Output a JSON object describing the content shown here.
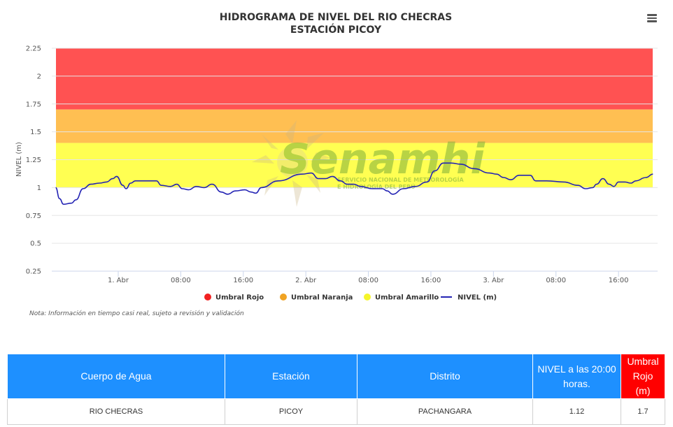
{
  "chart_data": {
    "type": "line",
    "title": "HIDROGRAMA DE NIVEL DEL RIO CHECRAS",
    "subtitle": "ESTACIÓN PICOY",
    "ylabel": "NIVEL (m)",
    "ylim": [
      0.25,
      2.25
    ],
    "yticks": [
      "0.25",
      "0.5",
      "0.75",
      "1",
      "1.25",
      "1.5",
      "1.75",
      "2",
      "2.25"
    ],
    "xticks": [
      {
        "t": 9,
        "label": "1. Abr"
      },
      {
        "t": 17,
        "label": "08:00"
      },
      {
        "t": 25,
        "label": "16:00"
      },
      {
        "t": 33,
        "label": "2. Abr"
      },
      {
        "t": 41,
        "label": "08:00"
      },
      {
        "t": 49,
        "label": "16:00"
      },
      {
        "t": 57,
        "label": "3. Abr"
      },
      {
        "t": 65,
        "label": "08:00"
      },
      {
        "t": 73,
        "label": "16:00"
      }
    ],
    "xlim": [
      0.5,
      78
    ],
    "bands": [
      {
        "name": "Umbral Rojo",
        "from": 1.7,
        "to": 2.25,
        "color": "#ff5252"
      },
      {
        "name": "Umbral Naranja",
        "from": 1.4,
        "to": 1.7,
        "color": "#ffbf52"
      },
      {
        "name": "Umbral Amarillo",
        "from": 1.0,
        "to": 1.4,
        "color": "#ffff52"
      }
    ],
    "series": [
      {
        "name": "NIVEL (m)",
        "color": "#2424b4",
        "points": [
          [
            1.0,
            1.0
          ],
          [
            1.5,
            0.9
          ],
          [
            2.0,
            0.85
          ],
          [
            3.0,
            0.86
          ],
          [
            3.6,
            0.89
          ],
          [
            4.5,
            0.99
          ],
          [
            5.5,
            1.03
          ],
          [
            6.6,
            1.04
          ],
          [
            7.5,
            1.05
          ],
          [
            8.3,
            1.08
          ],
          [
            8.8,
            1.1
          ],
          [
            9.6,
            1.02
          ],
          [
            10.0,
            0.99
          ],
          [
            10.6,
            1.04
          ],
          [
            11.2,
            1.06
          ],
          [
            12.8,
            1.06
          ],
          [
            13.9,
            1.06
          ],
          [
            14.5,
            1.02
          ],
          [
            15.7,
            1.01
          ],
          [
            16.5,
            1.03
          ],
          [
            17.2,
            0.99
          ],
          [
            18.0,
            0.98
          ],
          [
            19.0,
            1.01
          ],
          [
            20.0,
            1.0
          ],
          [
            21.0,
            1.03
          ],
          [
            22.2,
            0.96
          ],
          [
            23.0,
            0.94
          ],
          [
            24.0,
            0.97
          ],
          [
            25.2,
            0.98
          ],
          [
            26.0,
            0.96
          ],
          [
            26.6,
            0.95
          ],
          [
            27.3,
            1.0
          ],
          [
            29.5,
            1.06
          ],
          [
            32.5,
            1.12
          ],
          [
            33.7,
            1.13
          ],
          [
            34.6,
            1.08
          ],
          [
            35.5,
            1.08
          ],
          [
            36.4,
            1.1
          ],
          [
            37.4,
            1.06
          ],
          [
            38.3,
            1.03
          ],
          [
            39.1,
            1.03
          ],
          [
            40.0,
            1.01
          ],
          [
            41.5,
            0.99
          ],
          [
            42.8,
            0.99
          ],
          [
            43.4,
            0.97
          ],
          [
            44.1,
            0.94
          ],
          [
            45.5,
            0.99
          ],
          [
            47.0,
            1.01
          ],
          [
            48.5,
            1.05
          ],
          [
            49.5,
            1.15
          ],
          [
            50.6,
            1.22
          ],
          [
            51.6,
            1.22
          ],
          [
            52.8,
            1.21
          ],
          [
            54.5,
            1.17
          ],
          [
            56.5,
            1.13
          ],
          [
            57.4,
            1.12
          ],
          [
            58.3,
            1.09
          ],
          [
            59.2,
            1.07
          ],
          [
            60.3,
            1.11
          ],
          [
            61.7,
            1.11
          ],
          [
            62.4,
            1.06
          ],
          [
            63.8,
            1.06
          ],
          [
            66.0,
            1.05
          ],
          [
            67.8,
            1.02
          ],
          [
            68.8,
            0.99
          ],
          [
            69.7,
            1.0
          ],
          [
            70.2,
            1.03
          ],
          [
            71.0,
            1.08
          ],
          [
            71.8,
            1.03
          ],
          [
            72.4,
            1.01
          ],
          [
            73.0,
            1.05
          ],
          [
            73.8,
            1.05
          ],
          [
            74.6,
            1.04
          ],
          [
            75.2,
            1.06
          ],
          [
            76.5,
            1.09
          ],
          [
            77.4,
            1.12
          ]
        ]
      }
    ],
    "legend": [
      {
        "label": "Umbral Rojo",
        "color": "#f22222",
        "marker": "circle"
      },
      {
        "label": "Umbral Naranja",
        "color": "#f0a324",
        "marker": "circle"
      },
      {
        "label": "Umbral Amarillo",
        "color": "#f5f52b",
        "marker": "circle"
      },
      {
        "label": "NIVEL (m)",
        "color": "#2424b4",
        "marker": "line"
      }
    ],
    "legend_position": "bottom",
    "grid": true
  },
  "watermark": {
    "brand": "Senamhi",
    "line1": "SERVICIO NACIONAL DE METEOROLOGÍA",
    "line2": "E HIDROLOGÍA DEL PERÚ"
  },
  "note": "Nota: Información en tiempo casi real, sujeto a revisión y validación",
  "menu_icon": "hamburger-menu-icon",
  "table": {
    "headers": [
      {
        "label": "Cuerpo de Agua",
        "color": "#1e90ff"
      },
      {
        "label": "Estación",
        "color": "#1e90ff"
      },
      {
        "label": "Distrito",
        "color": "#1e90ff"
      },
      {
        "label": "NIVEL a las 20:00 horas.",
        "color": "#1e90ff"
      },
      {
        "label": "Umbral Rojo (m)",
        "color": "#ff0000"
      }
    ],
    "rows": [
      [
        "RIO CHECRAS",
        "PICOY",
        "PACHANGARA",
        "1.12",
        "1.7"
      ]
    ]
  }
}
